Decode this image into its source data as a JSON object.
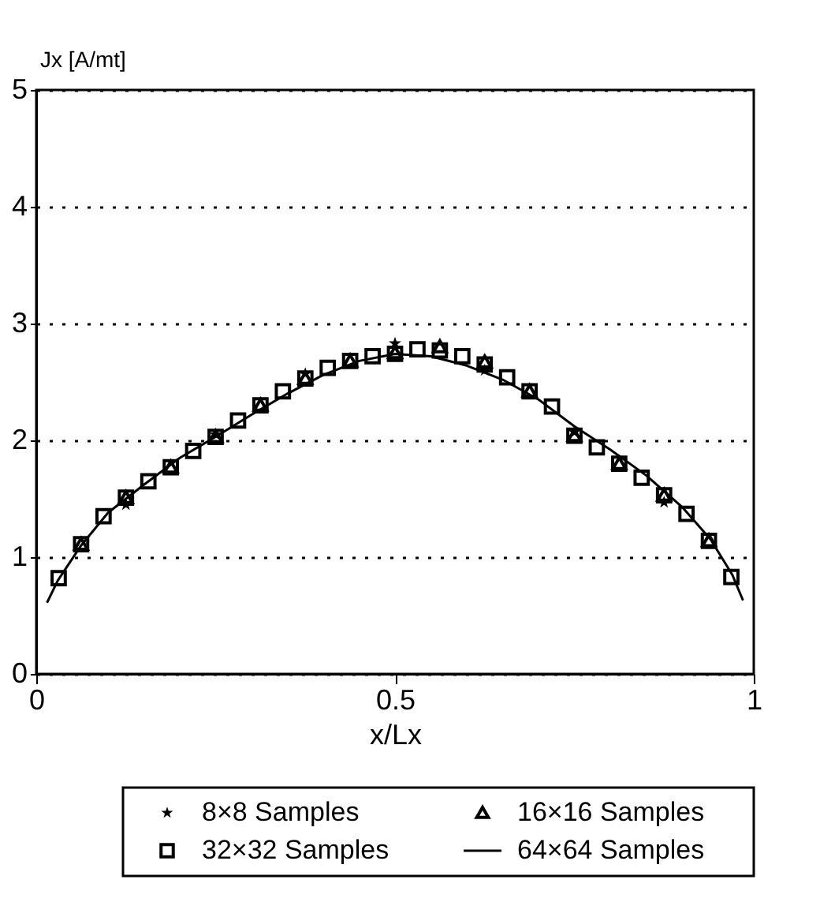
{
  "chart_data": {
    "type": "scatter",
    "xlabel": "x/Lx",
    "ylabel": "Jx [A/mt]",
    "xlim": [
      0,
      1
    ],
    "xticks": [
      0,
      0.5,
      1
    ],
    "ylim": [
      0,
      5
    ],
    "yticks": [
      0,
      1,
      2,
      3,
      4,
      5
    ],
    "grid": "y",
    "legend": "bottom",
    "series": [
      {
        "name": "8×8 Samples",
        "marker": "star",
        "color": "#000000",
        "x": [
          0.125,
          0.25,
          0.375,
          0.5,
          0.625,
          0.75,
          0.875
        ],
        "values": [
          1.45,
          2.05,
          2.57,
          2.83,
          2.6,
          2.07,
          1.47
        ]
      },
      {
        "name": "16×16 Samples",
        "marker": "triangle",
        "color": "#000000",
        "x": [
          0.0625,
          0.125,
          0.1875,
          0.25,
          0.3125,
          0.375,
          0.4375,
          0.5,
          0.5625,
          0.625,
          0.6875,
          0.75,
          0.8125,
          0.875,
          0.9375
        ],
        "values": [
          1.11,
          1.51,
          1.77,
          2.03,
          2.3,
          2.53,
          2.68,
          2.75,
          2.8,
          2.67,
          2.42,
          2.04,
          1.8,
          1.53,
          1.14
        ]
      },
      {
        "name": "32×32 Samples",
        "marker": "square",
        "color": "#000000",
        "x": [
          0.03125,
          0.0625,
          0.09375,
          0.125,
          0.15625,
          0.1875,
          0.21875,
          0.25,
          0.28125,
          0.3125,
          0.34375,
          0.375,
          0.40625,
          0.4375,
          0.46875,
          0.5,
          0.53125,
          0.5625,
          0.59375,
          0.625,
          0.65625,
          0.6875,
          0.71875,
          0.75,
          0.78125,
          0.8125,
          0.84375,
          0.875,
          0.90625,
          0.9375,
          0.96875
        ],
        "values": [
          0.82,
          1.11,
          1.35,
          1.51,
          1.65,
          1.77,
          1.91,
          2.03,
          2.17,
          2.3,
          2.42,
          2.53,
          2.62,
          2.68,
          2.72,
          2.74,
          2.78,
          2.77,
          2.72,
          2.65,
          2.54,
          2.42,
          2.29,
          2.04,
          1.94,
          1.8,
          1.68,
          1.53,
          1.37,
          1.14,
          0.83
        ]
      },
      {
        "name": "64×64 Samples",
        "type": "line",
        "marker": "none",
        "line_style": "solid",
        "color": "#000000",
        "x": [
          0.015,
          0.03,
          0.0625,
          0.1,
          0.15,
          0.2,
          0.25,
          0.3,
          0.35,
          0.4,
          0.45,
          0.5,
          0.55,
          0.6,
          0.65,
          0.7,
          0.75,
          0.8,
          0.85,
          0.9,
          0.94,
          0.97,
          0.985
        ],
        "values": [
          0.61,
          0.8,
          1.1,
          1.38,
          1.62,
          1.85,
          2.03,
          2.22,
          2.4,
          2.56,
          2.68,
          2.74,
          2.72,
          2.64,
          2.52,
          2.35,
          2.12,
          1.92,
          1.7,
          1.43,
          1.15,
          0.85,
          0.63
        ]
      }
    ]
  }
}
